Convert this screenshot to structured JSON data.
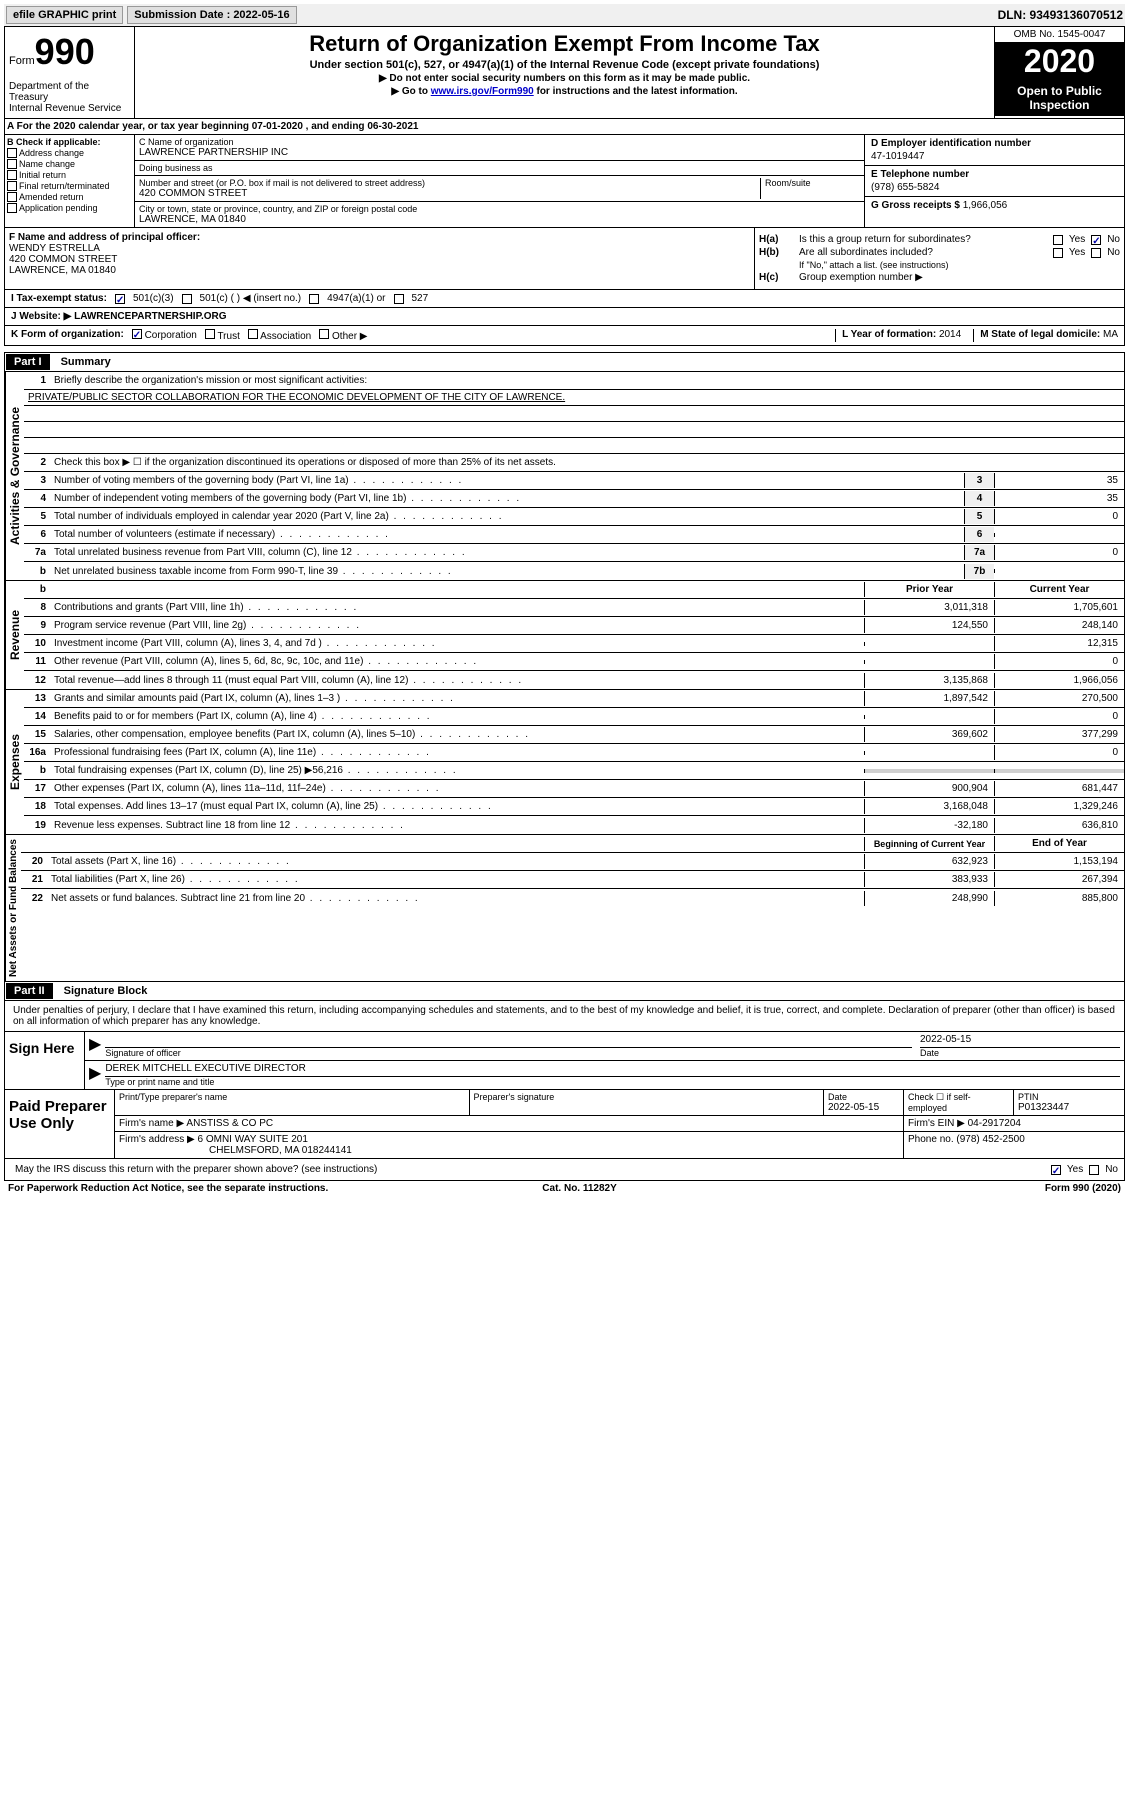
{
  "topbar": {
    "efile": "efile GRAPHIC print",
    "submission": "Submission Date : 2022-05-16",
    "dln": "DLN: 93493136070512"
  },
  "header": {
    "form_prefix": "Form",
    "form_num": "990",
    "dept": "Department of the Treasury\nInternal Revenue Service",
    "title": "Return of Organization Exempt From Income Tax",
    "subtitle": "Under section 501(c), 527, or 4947(a)(1) of the Internal Revenue Code (except private foundations)",
    "instr1": "▶ Do not enter social security numbers on this form as it may be made public.",
    "instr2_pre": "▶ Go to ",
    "instr2_link": "www.irs.gov/Form990",
    "instr2_post": " for instructions and the latest information.",
    "omb": "OMB No. 1545-0047",
    "year": "2020",
    "open": "Open to Public Inspection"
  },
  "rowA": "A For the 2020 calendar year, or tax year beginning 07-01-2020    , and ending 06-30-2021",
  "colB": {
    "label": "B Check if applicable:",
    "items": [
      "Address change",
      "Name change",
      "Initial return",
      "Final return/terminated",
      "Amended return",
      "Application pending"
    ]
  },
  "colC": {
    "name_label": "C Name of organization",
    "name": "LAWRENCE PARTNERSHIP INC",
    "dba_label": "Doing business as",
    "dba": "",
    "addr_label": "Number and street (or P.O. box if mail is not delivered to street address)",
    "room_label": "Room/suite",
    "addr": "420 COMMON STREET",
    "city_label": "City or town, state or province, country, and ZIP or foreign postal code",
    "city": "LAWRENCE, MA  01840"
  },
  "colD": {
    "ein_label": "D Employer identification number",
    "ein": "47-1019447",
    "phone_label": "E Telephone number",
    "phone": "(978) 655-5824",
    "gross_label": "G Gross receipts $",
    "gross": "1,966,056"
  },
  "colF": {
    "label": "F  Name and address of principal officer:",
    "name": "WENDY ESTRELLA",
    "addr1": "420 COMMON STREET",
    "addr2": "LAWRENCE, MA  01840"
  },
  "colH": {
    "ha_label": "H(a)",
    "ha_text": "Is this a group return for subordinates?",
    "hb_label": "H(b)",
    "hb_text": "Are all subordinates included?",
    "hb_note": "If \"No,\" attach a list. (see instructions)",
    "hc_label": "H(c)",
    "hc_text": "Group exemption number ▶"
  },
  "rowI": {
    "label": "I  Tax-exempt status:",
    "opt1": "501(c)(3)",
    "opt2": "501(c) (   ) ◀ (insert no.)",
    "opt3": "4947(a)(1) or",
    "opt4": "527"
  },
  "rowJ": {
    "label": "J  Website: ▶",
    "val": "LAWRENCEPARTNERSHIP.ORG"
  },
  "rowK": {
    "label": "K Form of organization:",
    "opts": [
      "Corporation",
      "Trust",
      "Association",
      "Other ▶"
    ],
    "l_label": "L Year of formation:",
    "l_val": "2014",
    "m_label": "M State of legal domicile:",
    "m_val": "MA"
  },
  "part1": {
    "hdr": "Part I",
    "title": "Summary",
    "side1": "Activities & Governance",
    "line1_label": "Briefly describe the organization's mission or most significant activities:",
    "mission": "PRIVATE/PUBLIC SECTOR COLLABORATION FOR THE ECONOMIC DEVELOPMENT OF THE CITY OF LAWRENCE.",
    "line2": "Check this box ▶ ☐  if the organization discontinued its operations or disposed of more than 25% of its net assets.",
    "lines_gov": [
      {
        "n": "3",
        "t": "Number of voting members of the governing body (Part VI, line 1a)",
        "box": "3",
        "v": "35"
      },
      {
        "n": "4",
        "t": "Number of independent voting members of the governing body (Part VI, line 1b)",
        "box": "4",
        "v": "35"
      },
      {
        "n": "5",
        "t": "Total number of individuals employed in calendar year 2020 (Part V, line 2a)",
        "box": "5",
        "v": "0"
      },
      {
        "n": "6",
        "t": "Total number of volunteers (estimate if necessary)",
        "box": "6",
        "v": ""
      },
      {
        "n": "7a",
        "t": "Total unrelated business revenue from Part VIII, column (C), line 12",
        "box": "7a",
        "v": "0"
      },
      {
        "n": "b",
        "t": "Net unrelated business taxable income from Form 990-T, line 39",
        "box": "7b",
        "v": ""
      }
    ],
    "side2": "Revenue",
    "col_prior": "Prior Year",
    "col_curr": "Current Year",
    "lines_rev": [
      {
        "n": "8",
        "t": "Contributions and grants (Part VIII, line 1h)",
        "p": "3,011,318",
        "c": "1,705,601"
      },
      {
        "n": "9",
        "t": "Program service revenue (Part VIII, line 2g)",
        "p": "124,550",
        "c": "248,140"
      },
      {
        "n": "10",
        "t": "Investment income (Part VIII, column (A), lines 3, 4, and 7d )",
        "p": "",
        "c": "12,315"
      },
      {
        "n": "11",
        "t": "Other revenue (Part VIII, column (A), lines 5, 6d, 8c, 9c, 10c, and 11e)",
        "p": "",
        "c": "0"
      },
      {
        "n": "12",
        "t": "Total revenue—add lines 8 through 11 (must equal Part VIII, column (A), line 12)",
        "p": "3,135,868",
        "c": "1,966,056"
      }
    ],
    "side3": "Expenses",
    "lines_exp": [
      {
        "n": "13",
        "t": "Grants and similar amounts paid (Part IX, column (A), lines 1–3 )",
        "p": "1,897,542",
        "c": "270,500"
      },
      {
        "n": "14",
        "t": "Benefits paid to or for members (Part IX, column (A), line 4)",
        "p": "",
        "c": "0"
      },
      {
        "n": "15",
        "t": "Salaries, other compensation, employee benefits (Part IX, column (A), lines 5–10)",
        "p": "369,602",
        "c": "377,299"
      },
      {
        "n": "16a",
        "t": "Professional fundraising fees (Part IX, column (A), line 11e)",
        "p": "",
        "c": "0"
      },
      {
        "n": "b",
        "t": "Total fundraising expenses (Part IX, column (D), line 25) ▶56,216",
        "p": "shaded",
        "c": "shaded"
      },
      {
        "n": "17",
        "t": "Other expenses (Part IX, column (A), lines 11a–11d, 11f–24e)",
        "p": "900,904",
        "c": "681,447"
      },
      {
        "n": "18",
        "t": "Total expenses. Add lines 13–17 (must equal Part IX, column (A), line 25)",
        "p": "3,168,048",
        "c": "1,329,246"
      },
      {
        "n": "19",
        "t": "Revenue less expenses. Subtract line 18 from line 12",
        "p": "-32,180",
        "c": "636,810"
      }
    ],
    "side4": "Net Assets or Fund Balances",
    "col_beg": "Beginning of Current Year",
    "col_end": "End of Year",
    "lines_net": [
      {
        "n": "20",
        "t": "Total assets (Part X, line 16)",
        "p": "632,923",
        "c": "1,153,194"
      },
      {
        "n": "21",
        "t": "Total liabilities (Part X, line 26)",
        "p": "383,933",
        "c": "267,394"
      },
      {
        "n": "22",
        "t": "Net assets or fund balances. Subtract line 21 from line 20",
        "p": "248,990",
        "c": "885,800"
      }
    ]
  },
  "part2": {
    "hdr": "Part II",
    "title": "Signature Block",
    "declaration": "Under penalties of perjury, I declare that I have examined this return, including accompanying schedules and statements, and to the best of my knowledge and belief, it is true, correct, and complete. Declaration of preparer (other than officer) is based on all information of which preparer has any knowledge.",
    "sign_here": "Sign Here",
    "sig_officer": "Signature of officer",
    "sig_date_label": "Date",
    "sig_date": "2022-05-15",
    "sig_name": "DEREK MITCHELL  EXECUTIVE DIRECTOR",
    "sig_type": "Type or print name and title",
    "paid": "Paid Preparer Use Only",
    "prep_name_label": "Print/Type preparer's name",
    "prep_sig_label": "Preparer's signature",
    "prep_date_label": "Date",
    "prep_date": "2022-05-15",
    "prep_check": "Check ☐ if self-employed",
    "ptin_label": "PTIN",
    "ptin": "P01323447",
    "firm_name_label": "Firm's name    ▶",
    "firm_name": "ANSTISS & CO PC",
    "firm_ein_label": "Firm's EIN ▶",
    "firm_ein": "04-2917204",
    "firm_addr_label": "Firm's address ▶",
    "firm_addr1": "6 OMNI WAY SUITE 201",
    "firm_addr2": "CHELMSFORD, MA  018244141",
    "firm_phone_label": "Phone no.",
    "firm_phone": "(978) 452-2500",
    "discuss": "May the IRS discuss this return with the preparer shown above? (see instructions)"
  },
  "footer": {
    "left": "For Paperwork Reduction Act Notice, see the separate instructions.",
    "mid": "Cat. No. 11282Y",
    "right": "Form 990 (2020)"
  },
  "colors": {
    "link": "#0000cc",
    "black": "#000000",
    "shade": "#d0d0d0"
  }
}
